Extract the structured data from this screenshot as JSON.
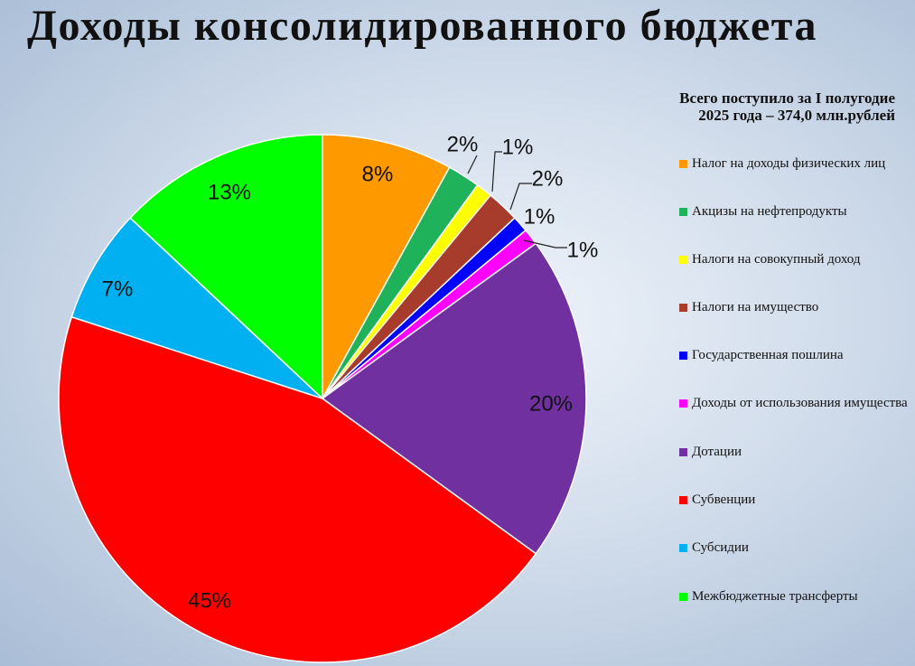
{
  "title": "Доходы консолидированного бюджета",
  "subtitle_line1": "Всего поступило за I полугодие",
  "subtitle_line2": "2025 года – 374,0 млн.рублей",
  "chart_data": {
    "type": "pie",
    "title": "Доходы консолидированного бюджета",
    "subtitle": "Всего поступило за I полугодие 2025 года – 374,0 млн.рублей",
    "legend_position": "right",
    "start_angle_deg": 0,
    "direction": "clockwise",
    "slices": [
      {
        "name": "Налог на доходы физических лиц",
        "value": 8,
        "label": "8%",
        "color": "#ff9900"
      },
      {
        "name": "Акцизы на нефтепродукты",
        "value": 2,
        "label": "2%",
        "color": "#1fb25a"
      },
      {
        "name": "Налоги на совокупный доход",
        "value": 1,
        "label": "1%",
        "color": "#ffff00"
      },
      {
        "name": "Налоги на имущество",
        "value": 2,
        "label": "2%",
        "color": "#a83c2c"
      },
      {
        "name": "Государственная пошлина",
        "value": 1,
        "label": "1%",
        "color": "#0000ff"
      },
      {
        "name": "Доходы от использования имущества",
        "value": 1,
        "label": "1%",
        "color": "#ff00ff"
      },
      {
        "name": "Дотации",
        "value": 20,
        "label": "20%",
        "color": "#7030a0"
      },
      {
        "name": "Субвенции",
        "value": 45,
        "label": "45%",
        "color": "#ff0000"
      },
      {
        "name": "Субсидии",
        "value": 7,
        "label": "7%",
        "color": "#00b0f0"
      },
      {
        "name": "Межбюджетные трансферты",
        "value": 13,
        "label": "13%",
        "color": "#00ff00"
      }
    ]
  }
}
